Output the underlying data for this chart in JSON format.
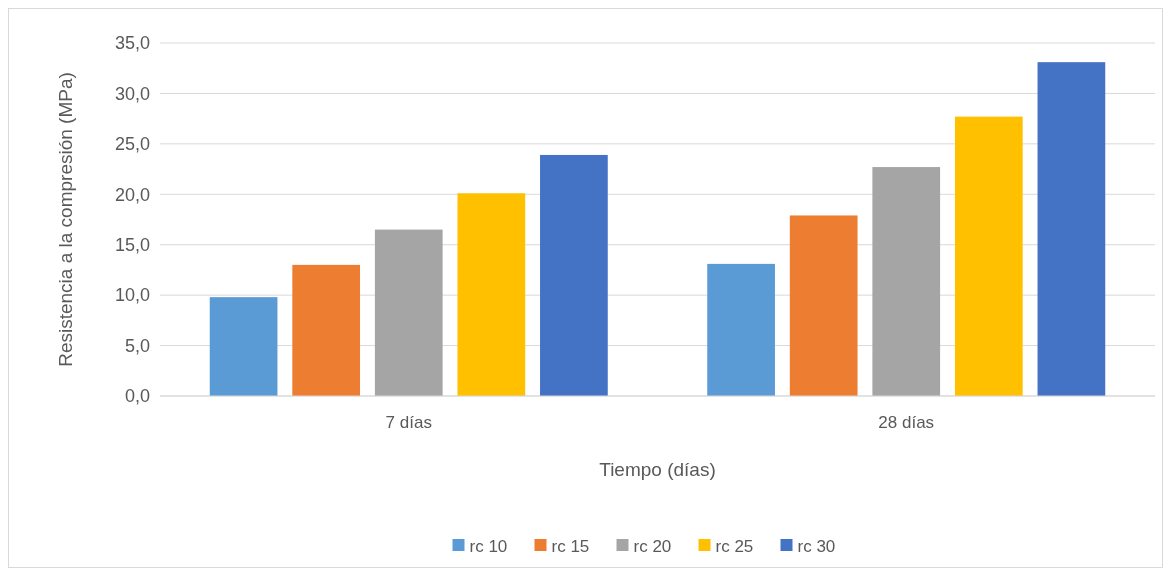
{
  "chart_data": {
    "type": "bar",
    "xlabel": "Tiempo (días)",
    "ylabel": "Resistencia a la compresión (MPa)",
    "categories": [
      "7 días",
      "28 días"
    ],
    "series": [
      {
        "name": "rc 10",
        "color": "#5b9bd5",
        "values": [
          9.8,
          13.1
        ]
      },
      {
        "name": "rc 15",
        "color": "#ed7d31",
        "values": [
          13.0,
          17.9
        ]
      },
      {
        "name": "rc 20",
        "color": "#a5a5a5",
        "values": [
          16.5,
          22.7
        ]
      },
      {
        "name": "rc 25",
        "color": "#ffc000",
        "values": [
          20.1,
          27.7
        ]
      },
      {
        "name": "rc 30",
        "color": "#4472c4",
        "values": [
          23.9,
          33.1
        ]
      }
    ],
    "ylim": [
      0,
      35
    ],
    "yticks": [
      {
        "value": 0,
        "label": "0,0"
      },
      {
        "value": 5,
        "label": "5,0"
      },
      {
        "value": 10,
        "label": "10,0"
      },
      {
        "value": 15,
        "label": "15,0"
      },
      {
        "value": 20,
        "label": "20,0"
      },
      {
        "value": 25,
        "label": "25,0"
      },
      {
        "value": 30,
        "label": "30,0"
      },
      {
        "value": 35,
        "label": "35,0"
      }
    ],
    "grid": "y",
    "legend": "bottom"
  }
}
